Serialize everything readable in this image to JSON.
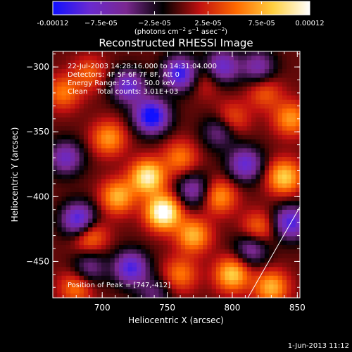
{
  "footer_date": "1-Jun-2013 11:12",
  "chart_data": {
    "type": "heatmap",
    "title": "Reconstructed RHESSI Image",
    "xlabel": "Heliocentric X (arcsec)",
    "ylabel": "Heliocentric Y (arcsec)",
    "xlim": [
      662,
      852
    ],
    "ylim": [
      -478,
      -288
    ],
    "x_ticks": [
      700,
      750,
      800,
      850
    ],
    "y_ticks": [
      -300,
      -350,
      -400,
      -450
    ],
    "colorbar": {
      "range": [
        -0.00012,
        0.00012
      ],
      "tick_labels": [
        "-0.00012",
        "−7.5e-05",
        "−2.5e-05",
        "2.5e-05",
        "7.5e-05",
        "0.00012"
      ],
      "tick_values": [
        -0.00012,
        -7.5e-05,
        -2.5e-05,
        2.5e-05,
        7.5e-05,
        0.00012
      ],
      "units_html": "(photons cm<tspan dy='-4' font-size='7'>−2</tspan><tspan dy='4'> s</tspan><tspan dy='-4' font-size='7'>−1</tspan><tspan dy='4'> asec</tspan><tspan dy='-4' font-size='7'>−2</tspan><tspan dy='4'>)</tspan>",
      "colors": [
        "#1010ff",
        "#6a2ad0",
        "#7a2890",
        "#000000",
        "#c01010",
        "#ff6a00",
        "#ffd040",
        "#ffffff"
      ]
    },
    "annotations": [
      "22-Jul-2003 14:28:16.000 to 14:31:04.000",
      "Detectors: 4F 5F 6F 7F 8F, Att 0",
      "Energy Range: 25.0 - 50.0 keV",
      "Clean    Total counts: 3.01E+03"
    ],
    "peak_label": "Position of Peak = [747,-412]",
    "peak": {
      "x": 747,
      "y": -412,
      "value": 0.00012
    },
    "features": [
      {
        "x": 747,
        "y": -412,
        "value": 0.00012
      },
      {
        "x": 735,
        "y": -385,
        "value": 0.0001
      },
      {
        "x": 712,
        "y": -400,
        "value": 7e-05
      },
      {
        "x": 690,
        "y": -430,
        "value": 6e-05
      },
      {
        "x": 680,
        "y": -470,
        "value": 5e-05
      },
      {
        "x": 770,
        "y": -430,
        "value": 7e-05
      },
      {
        "x": 790,
        "y": -400,
        "value": 6e-05
      },
      {
        "x": 760,
        "y": -370,
        "value": 5e-05
      },
      {
        "x": 705,
        "y": -355,
        "value": 6e-05
      },
      {
        "x": 800,
        "y": -460,
        "value": 8e-05
      },
      {
        "x": 830,
        "y": -470,
        "value": 7e-05
      },
      {
        "x": 840,
        "y": -385,
        "value": 8e-05
      },
      {
        "x": 845,
        "y": -340,
        "value": 6e-05
      },
      {
        "x": 825,
        "y": -320,
        "value": 4e-05
      },
      {
        "x": 800,
        "y": -340,
        "value": 4e-05
      },
      {
        "x": 780,
        "y": -310,
        "value": 3e-05
      },
      {
        "x": 670,
        "y": -320,
        "value": 5e-05
      },
      {
        "x": 690,
        "y": -305,
        "value": 4e-05
      },
      {
        "x": 760,
        "y": -460,
        "value": 5e-05
      },
      {
        "x": 820,
        "y": -425,
        "value": 5e-05
      },
      {
        "x": 738,
        "y": -338,
        "value": -0.00012
      },
      {
        "x": 720,
        "y": -315,
        "value": -8e-05
      },
      {
        "x": 760,
        "y": -305,
        "value": -0.0001
      },
      {
        "x": 792,
        "y": -300,
        "value": -8e-05
      },
      {
        "x": 682,
        "y": -418,
        "value": -0.0001
      },
      {
        "x": 672,
        "y": -370,
        "value": -7e-05
      },
      {
        "x": 722,
        "y": -455,
        "value": -9e-05
      },
      {
        "x": 770,
        "y": -395,
        "value": -6e-05
      },
      {
        "x": 810,
        "y": -375,
        "value": -8e-05
      },
      {
        "x": 845,
        "y": -420,
        "value": -9e-05
      },
      {
        "x": 815,
        "y": -440,
        "value": -6e-05
      },
      {
        "x": 690,
        "y": -455,
        "value": -5e-05
      },
      {
        "x": 790,
        "y": -350,
        "value": -5e-05
      },
      {
        "x": 820,
        "y": -300,
        "value": -6e-05
      },
      {
        "x": 740,
        "y": -475,
        "value": -4e-05
      }
    ],
    "limb_line": [
      {
        "x": 812,
        "y": -478
      },
      {
        "x": 852,
        "y": -408
      }
    ]
  }
}
